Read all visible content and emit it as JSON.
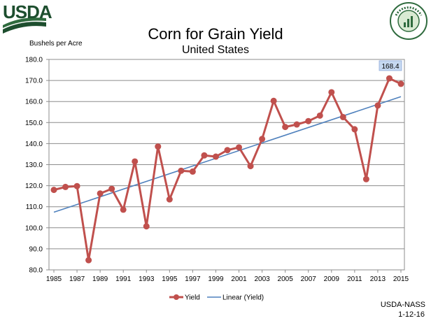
{
  "logo": {
    "text": "USDA"
  },
  "seal": {
    "text": "AGRICULTURE COUNTS"
  },
  "chart_data": {
    "type": "line",
    "title": "Corn for Grain Yield",
    "subtitle": "United States",
    "ylabel": "Bushels per Acre",
    "xlabel": "",
    "x": [
      1985,
      1986,
      1987,
      1988,
      1989,
      1990,
      1991,
      1992,
      1993,
      1994,
      1995,
      1996,
      1997,
      1998,
      1999,
      2000,
      2001,
      2002,
      2003,
      2004,
      2005,
      2006,
      2007,
      2008,
      2009,
      2010,
      2011,
      2012,
      2013,
      2014,
      2015
    ],
    "x_tick_labels": [
      "1985",
      "1987",
      "1989",
      "1991",
      "1993",
      "1995",
      "1997",
      "1999",
      "2001",
      "2003",
      "2005",
      "2007",
      "2009",
      "2011",
      "2013",
      "2015"
    ],
    "y_tick_labels": [
      "80.0",
      "90.0",
      "100.0",
      "110.0",
      "120.0",
      "130.0",
      "140.0",
      "150.0",
      "160.0",
      "170.0",
      "180.0"
    ],
    "ylim": [
      80,
      180
    ],
    "grid": true,
    "legend_position": "bottom",
    "series": [
      {
        "name": "Yield",
        "color": "#c0504d",
        "values": [
          118.0,
          119.4,
          119.8,
          84.6,
          116.3,
          118.5,
          108.6,
          131.5,
          100.7,
          138.6,
          113.5,
          127.1,
          126.7,
          134.4,
          133.8,
          136.9,
          138.2,
          129.3,
          142.2,
          160.3,
          147.9,
          149.1,
          150.7,
          153.3,
          164.4,
          152.6,
          146.8,
          123.1,
          158.1,
          171.0,
          168.4
        ]
      },
      {
        "name": "Linear (Yield)",
        "color": "#4f81bd",
        "trendline": true,
        "values_endpoints": [
          107.4,
          162.3
        ]
      }
    ],
    "annotation": {
      "label": "168.4",
      "x": 2015,
      "y": 168.4
    }
  },
  "footer": {
    "source": "USDA-NASS",
    "date": "1-12-16"
  }
}
